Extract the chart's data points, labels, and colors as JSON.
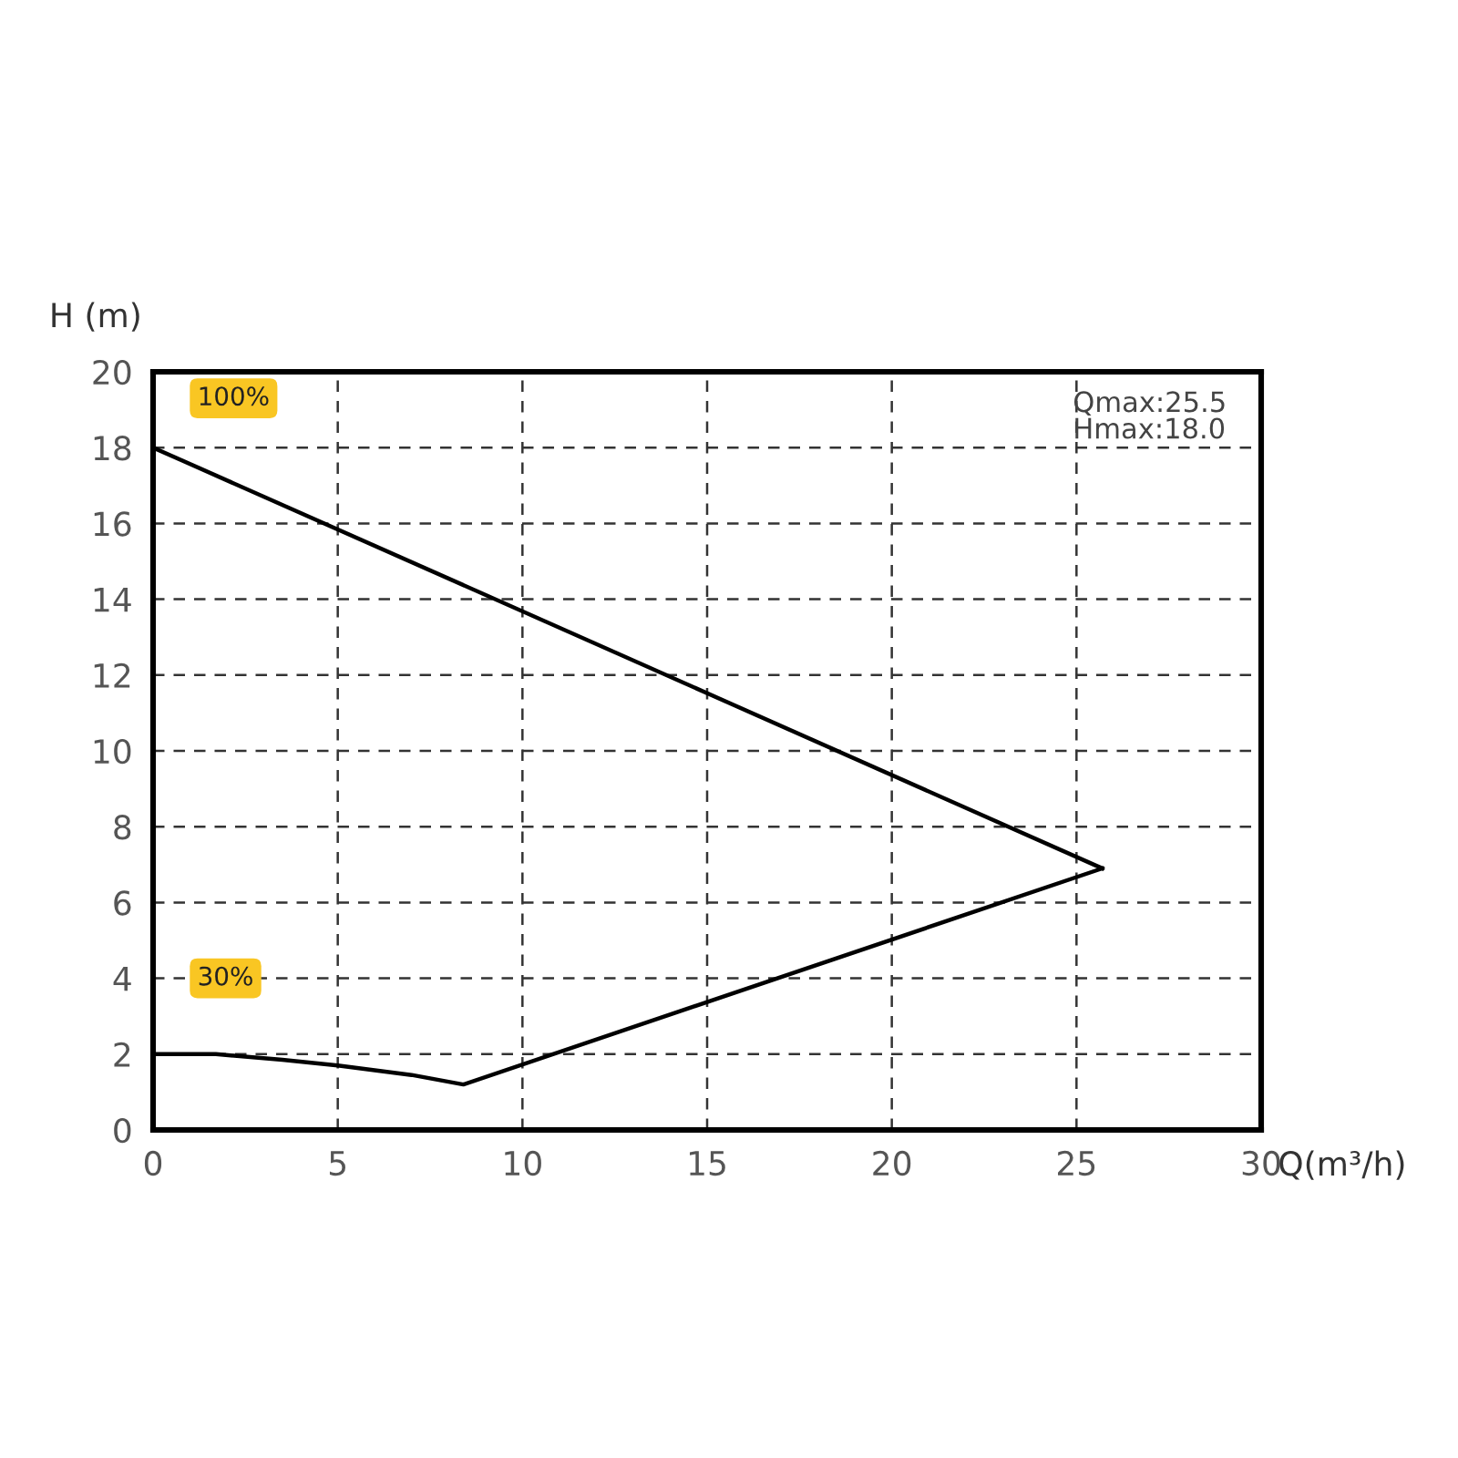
{
  "chart_data": {
    "type": "line",
    "series": [
      {
        "name": "100%",
        "color": "#000000",
        "x": [
          0,
          25.7
        ],
        "values": [
          18,
          6.9
        ]
      },
      {
        "name": "30%",
        "color": "#000000",
        "x": [
          0,
          1.7,
          3.5,
          5,
          7,
          8.4,
          25.7
        ],
        "values": [
          2.0,
          2.0,
          1.85,
          1.7,
          1.45,
          1.2,
          6.9
        ]
      }
    ],
    "xlabel": "Q(m³/h)",
    "ylabel": "H (m)",
    "annotations": [
      "Qmax:25.5",
      "Hmax:18.0"
    ],
    "xlim": [
      0,
      30
    ],
    "ylim": [
      0,
      20
    ],
    "xticks": [
      0,
      5,
      10,
      15,
      20,
      25,
      30
    ],
    "yticks": [
      0,
      2,
      4,
      6,
      8,
      10,
      12,
      14,
      16,
      18,
      20
    ],
    "grid": true,
    "line_style": "solid",
    "marker": "none"
  }
}
